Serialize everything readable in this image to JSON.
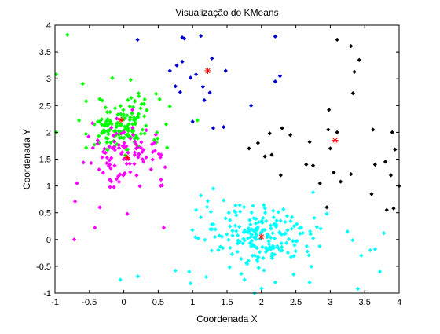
{
  "chart_data": {
    "type": "scatter",
    "title": "Visualização do KMeans",
    "xlabel": "Coordenada X",
    "ylabel": "Coordenada Y",
    "xlim": [
      -1,
      4
    ],
    "ylim": [
      -1,
      4
    ],
    "xticks": [
      "-1",
      "-0.5",
      "0",
      "0.5",
      "1",
      "1.5",
      "2",
      "2.5",
      "3",
      "3.5",
      "4"
    ],
    "yticks": [
      "-1",
      "-0.5",
      "0",
      "0.5",
      "1",
      "1.5",
      "2",
      "2.5",
      "3",
      "3.5",
      "4"
    ],
    "grid": false,
    "legend": "none",
    "series": [
      {
        "color": "#00ff00",
        "marker": "diamond",
        "cluster_spread": {
          "center": [
            -0.02,
            2.12
          ],
          "sx": 0.28,
          "sy": 0.27,
          "n": 150
        },
        "points": [
          [
            -0.82,
            3.82
          ],
          [
            -0.98,
            3.08
          ],
          [
            -0.98,
            2.0
          ],
          [
            -0.35,
            2.62
          ],
          [
            0.1,
            2.98
          ],
          [
            0.12,
            2.35
          ],
          [
            -0.55,
            1.97
          ]
        ]
      },
      {
        "color": "#ff00ff",
        "marker": "diamond",
        "cluster_spread": {
          "center": [
            0.05,
            1.62
          ],
          "sx": 0.28,
          "sy": 0.26,
          "n": 95
        },
        "points": [
          [
            -0.72,
            0.0
          ],
          [
            -0.35,
            0.6
          ],
          [
            -0.42,
            0.22
          ],
          [
            0.05,
            0.48
          ],
          [
            0.58,
            0.22
          ],
          [
            -0.68,
            1.05
          ],
          [
            0.6,
            1.35
          ],
          [
            -0.2,
            0.98
          ]
        ]
      },
      {
        "color": "#0000cd",
        "marker": "diamond",
        "points": [
          [
            0.2,
            3.73
          ],
          [
            0.85,
            3.77
          ],
          [
            0.88,
            3.75
          ],
          [
            1.12,
            3.8
          ],
          [
            1.28,
            3.38
          ],
          [
            0.85,
            3.32
          ],
          [
            0.77,
            3.25
          ],
          [
            1.05,
            3.08
          ],
          [
            1.48,
            3.15
          ],
          [
            0.67,
            3.15
          ],
          [
            0.97,
            3.02
          ],
          [
            0.75,
            2.86
          ],
          [
            1.15,
            2.85
          ],
          [
            2.2,
            3.79
          ],
          [
            2.27,
            3.05
          ],
          [
            2.2,
            2.95
          ],
          [
            1.25,
            2.74
          ],
          [
            1.17,
            2.6
          ],
          [
            1.85,
            2.5
          ],
          [
            1.0,
            2.2
          ],
          [
            1.3,
            2.08
          ],
          [
            1.45,
            2.1
          ],
          [
            0.82,
            2.75
          ]
        ]
      },
      {
        "color": "#000000",
        "marker": "diamond",
        "points": [
          [
            3.1,
            3.73
          ],
          [
            3.3,
            3.61
          ],
          [
            3.42,
            3.35
          ],
          [
            3.35,
            3.13
          ],
          [
            3.33,
            2.73
          ],
          [
            2.98,
            2.42
          ],
          [
            2.97,
            2.05
          ],
          [
            2.3,
            2.08
          ],
          [
            3.1,
            2.0
          ],
          [
            3.62,
            2.05
          ],
          [
            3.9,
            2.0
          ],
          [
            2.42,
            1.95
          ],
          [
            2.7,
            1.82
          ],
          [
            3.0,
            1.7
          ],
          [
            1.95,
            1.8
          ],
          [
            2.12,
            1.98
          ],
          [
            1.82,
            1.7
          ],
          [
            2.05,
            1.55
          ],
          [
            2.15,
            1.58
          ],
          [
            3.94,
            1.68
          ],
          [
            3.8,
            1.45
          ],
          [
            2.65,
            1.4
          ],
          [
            2.75,
            1.38
          ],
          [
            3.65,
            1.4
          ],
          [
            3.88,
            1.2
          ],
          [
            3.3,
            1.22
          ],
          [
            2.28,
            1.2
          ],
          [
            3.15,
            1.08
          ],
          [
            2.85,
            1.05
          ],
          [
            3.05,
            1.25
          ],
          [
            4.0,
            1.0
          ],
          [
            3.6,
            0.85
          ],
          [
            3.82,
            0.55
          ],
          [
            3.92,
            0.58
          ],
          [
            2.95,
            0.6
          ]
        ]
      },
      {
        "color": "#00ffff",
        "marker": "diamond",
        "cluster_spread": {
          "center": [
            2.0,
            0.04
          ],
          "sx": 0.42,
          "sy": 0.3,
          "n": 210
        },
        "points": [
          [
            1.12,
            0.82
          ],
          [
            1.05,
            0.55
          ],
          [
            0.75,
            -0.58
          ],
          [
            0.97,
            -0.82
          ],
          [
            0.95,
            -0.6
          ],
          [
            1.2,
            -0.7
          ],
          [
            1.9,
            -1.0
          ],
          [
            2.2,
            -0.8
          ],
          [
            2.7,
            -0.8
          ],
          [
            3.4,
            -0.92
          ],
          [
            3.72,
            -0.6
          ],
          [
            3.65,
            -0.18
          ],
          [
            3.58,
            -0.2
          ],
          [
            3.45,
            -0.3
          ],
          [
            3.78,
            0.12
          ],
          [
            3.25,
            0.15
          ],
          [
            -0.05,
            -0.75
          ],
          [
            1.3,
            0.95
          ],
          [
            2.75,
            0.88
          ],
          [
            2.95,
            0.48
          ]
        ]
      }
    ],
    "centroids": {
      "color": "#ff0000",
      "marker": "asterisk",
      "points": [
        [
          -0.04,
          2.23
        ],
        [
          0.05,
          1.53
        ],
        [
          1.22,
          3.15
        ],
        [
          3.07,
          1.85
        ],
        [
          2.0,
          0.05
        ]
      ]
    }
  }
}
